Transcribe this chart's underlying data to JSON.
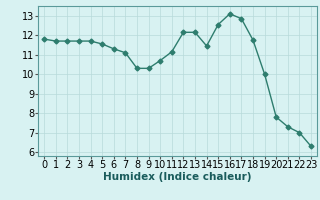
{
  "x": [
    0,
    1,
    2,
    3,
    4,
    5,
    6,
    7,
    8,
    9,
    10,
    11,
    12,
    13,
    14,
    15,
    16,
    17,
    18,
    19,
    20,
    21,
    22,
    23
  ],
  "y": [
    11.8,
    11.7,
    11.7,
    11.7,
    11.7,
    11.55,
    11.3,
    11.1,
    10.3,
    10.3,
    10.7,
    11.15,
    12.15,
    12.15,
    11.45,
    12.55,
    13.1,
    12.85,
    11.75,
    10.0,
    7.8,
    7.3,
    7.0,
    6.3
  ],
  "line_color": "#2e7d6e",
  "marker": "D",
  "markersize": 2.5,
  "linewidth": 1.0,
  "bg_color": "#d8f2f2",
  "grid_color": "#b8dada",
  "xlabel": "Humidex (Indice chaleur)",
  "xlim": [
    -0.5,
    23.5
  ],
  "ylim": [
    5.8,
    13.5
  ],
  "yticks": [
    6,
    7,
    8,
    9,
    10,
    11,
    12,
    13
  ],
  "xticks": [
    0,
    1,
    2,
    3,
    4,
    5,
    6,
    7,
    8,
    9,
    10,
    11,
    12,
    13,
    14,
    15,
    16,
    17,
    18,
    19,
    20,
    21,
    22,
    23
  ],
  "xlabel_fontsize": 7.5,
  "tick_fontsize": 7
}
